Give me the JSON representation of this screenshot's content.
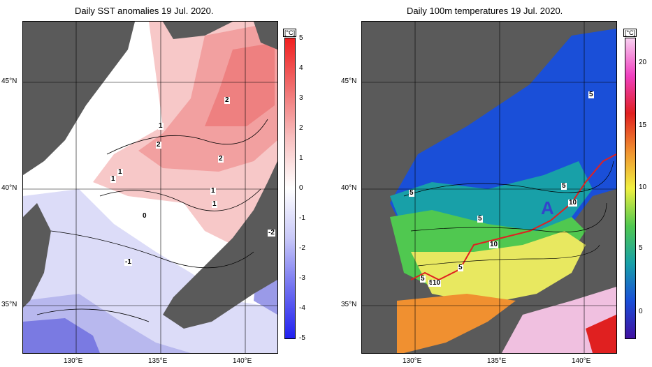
{
  "left_panel": {
    "title": "Daily SST anomalies 19 Jul. 2020.",
    "unit": "[°C]",
    "colorbar_ticks": [
      "5",
      "4",
      "3",
      "2",
      "1",
      "0",
      "-1",
      "-2",
      "-3",
      "-4",
      "-5"
    ],
    "contour_labels": [
      "2",
      "1",
      "2",
      "2",
      "1",
      "1",
      "1",
      "1",
      "0",
      "-1",
      "-2"
    ],
    "colors": {
      "land": "#555555",
      "pos_strong": "#e84848",
      "pos_weak": "#f7c8c8",
      "neutral": "#ffffff",
      "neg_weak": "#d8d8f7",
      "neg_strong": "#4848e8"
    }
  },
  "right_panel": {
    "title": "Daily 100m temperatures 19 Jul. 2020.",
    "unit": "[°C]",
    "colorbar_ticks": [
      "20",
      "15",
      "10",
      "5",
      "0"
    ],
    "contour_labels": [
      "5",
      "5",
      "5",
      "5",
      "10",
      "5",
      "10",
      "5",
      "5",
      "10"
    ],
    "region_label": "A",
    "colors": {
      "land": "#555555",
      "cold": "#1a3fd0",
      "cool": "#1fa6a0",
      "mid": "#48c848",
      "warm": "#f0f048",
      "hot": "#f07020",
      "front": "#e02020"
    }
  },
  "axes": {
    "lat_labels": [
      "45°N",
      "40°N",
      "35°N"
    ],
    "lon_labels": [
      "130°E",
      "135°E",
      "140°E"
    ]
  }
}
